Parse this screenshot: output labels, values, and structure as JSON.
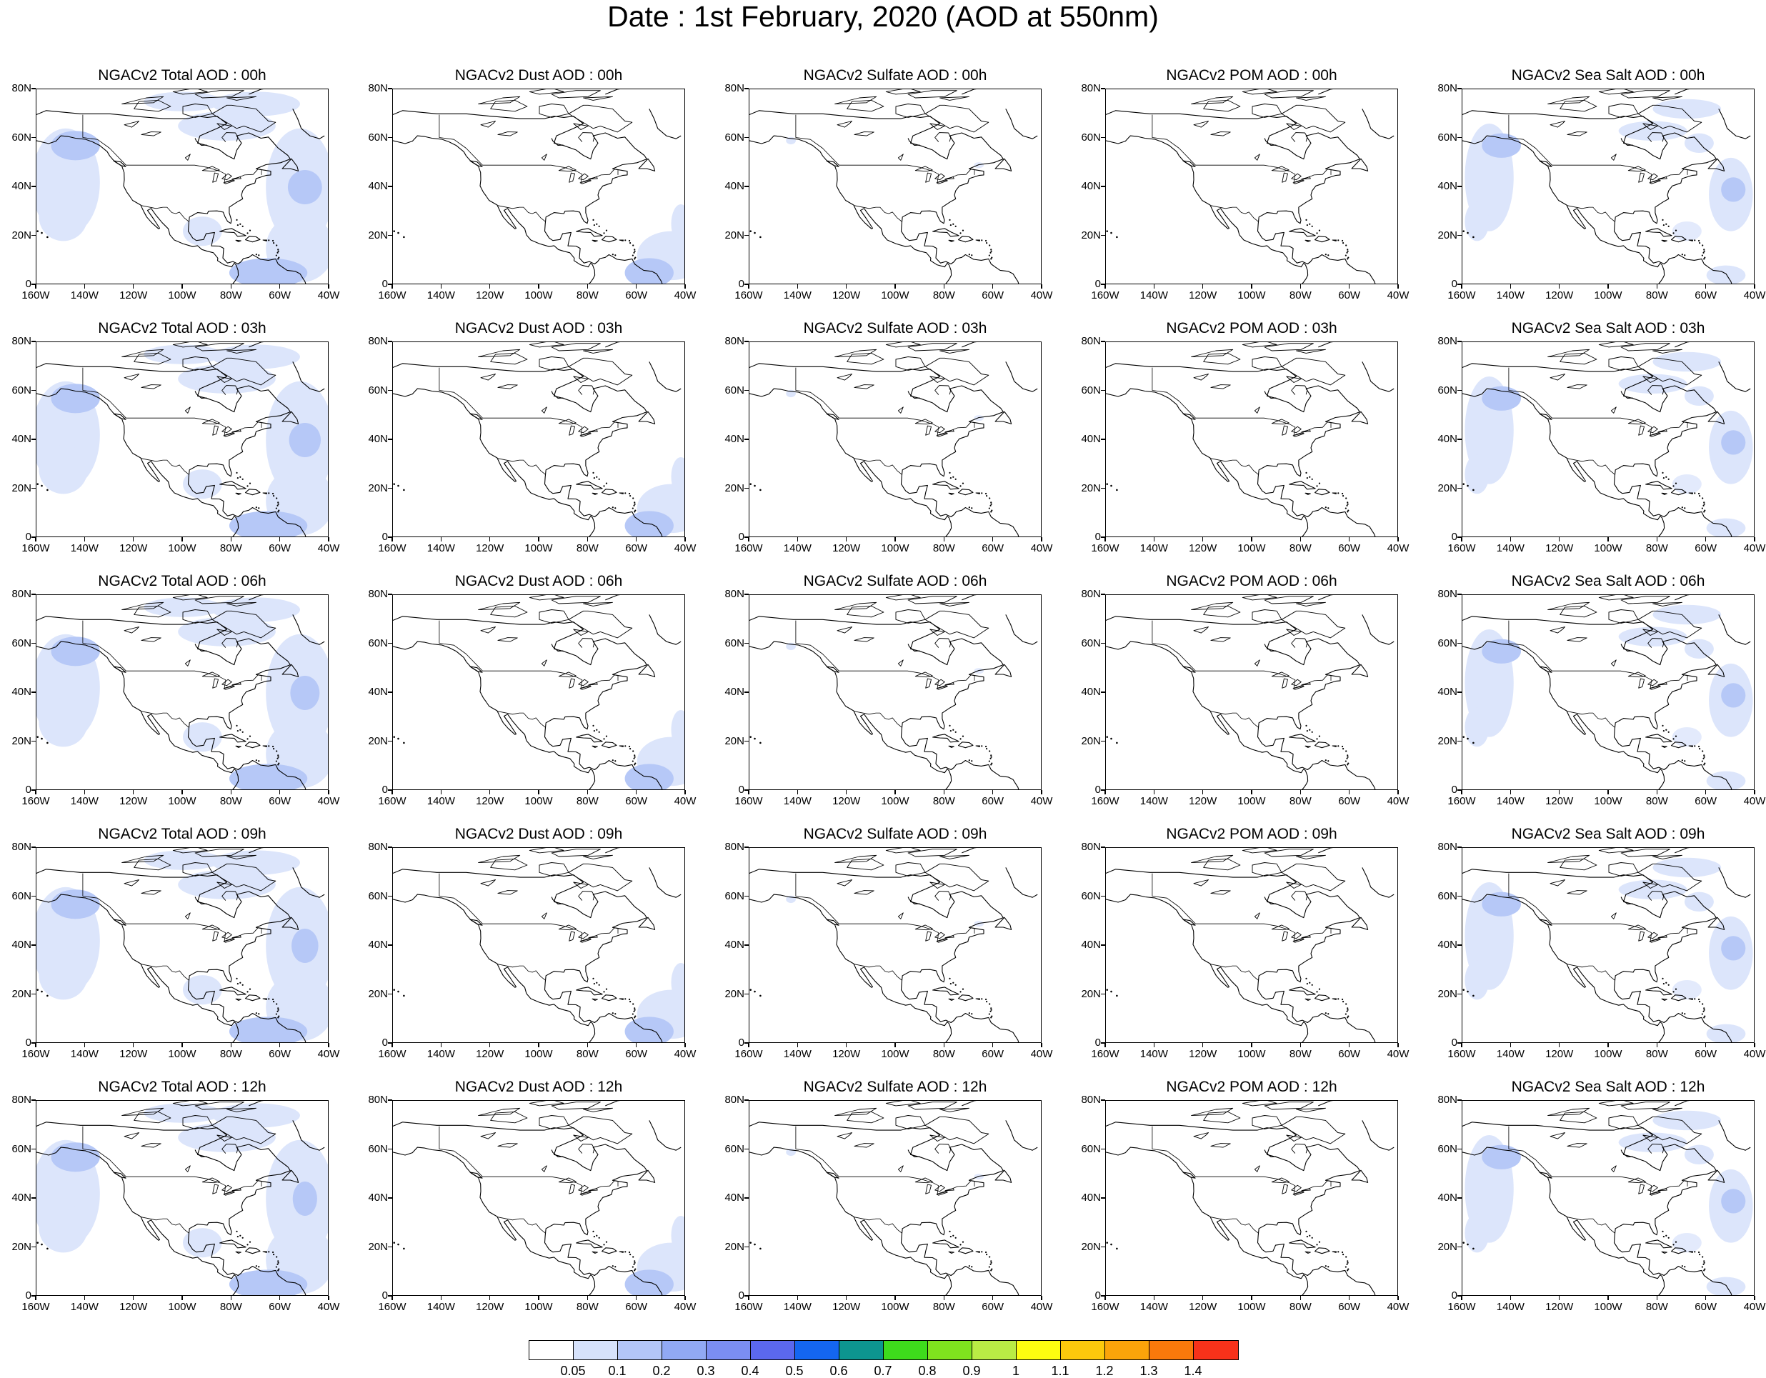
{
  "title": "Date : 1st February, 2020 (AOD at 550nm)",
  "map": {
    "lat_ticks": [
      "80N",
      "60N",
      "40N",
      "20N",
      "0"
    ],
    "lon_ticks": [
      "160W",
      "140W",
      "120W",
      "100W",
      "80W",
      "60W",
      "40W"
    ],
    "lat_range": [
      0,
      80
    ],
    "lon_range": [
      -160,
      -40
    ],
    "coastline_color": "#000000"
  },
  "panels": [
    {
      "title": "NGACv2 Total AOD : 00h",
      "kind": "total"
    },
    {
      "title": "NGACv2 Dust AOD : 00h",
      "kind": "dust"
    },
    {
      "title": "NGACv2 Sulfate AOD : 00h",
      "kind": "sulfate"
    },
    {
      "title": "NGACv2 POM AOD : 00h",
      "kind": "pom"
    },
    {
      "title": "NGACv2 Sea Salt AOD : 00h",
      "kind": "seasalt"
    },
    {
      "title": "NGACv2 Total AOD : 03h",
      "kind": "total"
    },
    {
      "title": "NGACv2 Dust AOD : 03h",
      "kind": "dust"
    },
    {
      "title": "NGACv2 Sulfate AOD : 03h",
      "kind": "sulfate"
    },
    {
      "title": "NGACv2 POM AOD : 03h",
      "kind": "pom"
    },
    {
      "title": "NGACv2 Sea Salt AOD : 03h",
      "kind": "seasalt"
    },
    {
      "title": "NGACv2 Total AOD : 06h",
      "kind": "total"
    },
    {
      "title": "NGACv2 Dust AOD : 06h",
      "kind": "dust"
    },
    {
      "title": "NGACv2 Sulfate AOD : 06h",
      "kind": "sulfate"
    },
    {
      "title": "NGACv2 POM AOD : 06h",
      "kind": "pom"
    },
    {
      "title": "NGACv2 Sea Salt AOD : 06h",
      "kind": "seasalt"
    },
    {
      "title": "NGACv2 Total AOD : 09h",
      "kind": "total"
    },
    {
      "title": "NGACv2 Dust AOD : 09h",
      "kind": "dust"
    },
    {
      "title": "NGACv2 Sulfate AOD : 09h",
      "kind": "sulfate"
    },
    {
      "title": "NGACv2 POM AOD : 09h",
      "kind": "pom"
    },
    {
      "title": "NGACv2 Sea Salt  AOD : 09h",
      "kind": "seasalt"
    },
    {
      "title": "NGACv2 Total AOD  : 12h",
      "kind": "total"
    },
    {
      "title": "NGACv2 Dust AOD : 12h",
      "kind": "dust"
    },
    {
      "title": "NGACv2 Sulfate AOD : 12h",
      "kind": "sulfate"
    },
    {
      "title": "NGACv2 POM  AOD : 12h",
      "kind": "pom"
    },
    {
      "title": "NGACv2 Sea Salt  AOD : 12h",
      "kind": "seasalt"
    }
  ],
  "colorbar": {
    "colors": [
      "#ffffff",
      "#d6e2fb",
      "#b3c6f7",
      "#91a9f4",
      "#7b8ef2",
      "#5b68ee",
      "#1466f0",
      "#0d958f",
      "#3edc1c",
      "#7fe31e",
      "#b9ec45",
      "#fdfd10",
      "#fcc90c",
      "#fba40a",
      "#f9790b",
      "#f7321a"
    ],
    "labels": [
      "0.05",
      "0.1",
      "0.2",
      "0.3",
      "0.4",
      "0.5",
      "0.6",
      "0.7",
      "0.8",
      "0.9",
      "1",
      "1.1",
      "1.2",
      "1.3",
      "1.4"
    ]
  }
}
